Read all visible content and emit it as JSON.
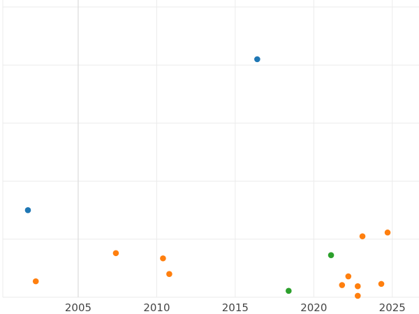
{
  "chart_data": {
    "type": "scatter",
    "title": "",
    "xlabel": "",
    "ylabel": "",
    "xlim": [
      2000.2,
      2026.7
    ],
    "ylim": [
      0,
      100
    ],
    "x_ticks": [
      2005,
      2010,
      2015,
      2020,
      2025
    ],
    "y_ticks": [
      0,
      20,
      40,
      60,
      80,
      100
    ],
    "grid": true,
    "legend": "none",
    "colors": {
      "blue": "#1f77b4",
      "orange": "#ff7f0e",
      "green": "#2ca02c",
      "grid": "#ebebeb",
      "tick_text": "#444444"
    },
    "series": [
      {
        "color": "#1f77b4",
        "points": [
          {
            "x": 2001.8,
            "y": 30
          },
          {
            "x": 2016.4,
            "y": 82
          }
        ]
      },
      {
        "color": "#ff7f0e",
        "points": [
          {
            "x": 2002.3,
            "y": 5.5
          },
          {
            "x": 2007.4,
            "y": 15.2
          },
          {
            "x": 2010.4,
            "y": 13.4
          },
          {
            "x": 2010.8,
            "y": 8
          },
          {
            "x": 2021.8,
            "y": 4.2
          },
          {
            "x": 2022.2,
            "y": 7.2
          },
          {
            "x": 2022.8,
            "y": 3.8
          },
          {
            "x": 2022.8,
            "y": 0.5
          },
          {
            "x": 2023.1,
            "y": 21
          },
          {
            "x": 2024.3,
            "y": 4.6
          },
          {
            "x": 2024.7,
            "y": 22.3
          }
        ]
      },
      {
        "color": "#2ca02c",
        "points": [
          {
            "x": 2018.4,
            "y": 2.2
          },
          {
            "x": 2021.1,
            "y": 14.5
          }
        ]
      }
    ]
  }
}
